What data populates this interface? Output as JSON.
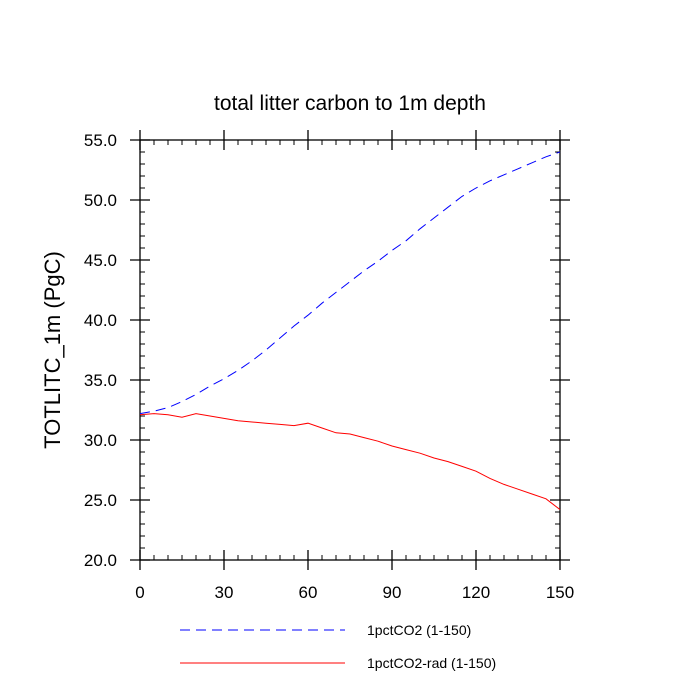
{
  "chart_data": {
    "type": "line",
    "title": "total litter carbon to 1m depth",
    "xlabel": "",
    "ylabel": "TOTLITC_1m  (PgC)",
    "xlim": [
      0,
      150
    ],
    "ylim": [
      20,
      55
    ],
    "x_ticks": [
      0,
      30,
      60,
      90,
      120,
      150
    ],
    "x_tick_labels": [
      "0",
      "30",
      "60",
      "90",
      "120",
      "150"
    ],
    "y_ticks": [
      20,
      25,
      30,
      35,
      40,
      45,
      50,
      55
    ],
    "y_tick_labels": [
      "20.0",
      "25.0",
      "30.0",
      "35.0",
      "40.0",
      "45.0",
      "50.0",
      "55.0"
    ],
    "grid": false,
    "legend_position": "bottom",
    "series": [
      {
        "name": "1pctCO2 (1-150)",
        "color": "#0000ff",
        "dash": "dashed",
        "x": [
          0,
          5,
          10,
          15,
          20,
          25,
          30,
          35,
          40,
          45,
          50,
          55,
          60,
          65,
          70,
          75,
          80,
          85,
          90,
          95,
          100,
          105,
          110,
          115,
          120,
          125,
          130,
          135,
          140,
          145,
          150
        ],
        "y": [
          32.2,
          32.4,
          32.7,
          33.2,
          33.8,
          34.5,
          35.1,
          35.8,
          36.6,
          37.5,
          38.5,
          39.5,
          40.4,
          41.4,
          42.3,
          43.2,
          44.1,
          44.9,
          45.8,
          46.6,
          47.6,
          48.5,
          49.4,
          50.3,
          51.0,
          51.6,
          52.1,
          52.6,
          53.1,
          53.6,
          54.0
        ]
      },
      {
        "name": "1pctCO2-rad (1-150)",
        "color": "#ff0000",
        "dash": "solid",
        "x": [
          0,
          5,
          10,
          15,
          20,
          25,
          30,
          35,
          40,
          45,
          50,
          55,
          60,
          65,
          70,
          75,
          80,
          85,
          90,
          95,
          100,
          105,
          110,
          115,
          120,
          125,
          130,
          135,
          140,
          145,
          150
        ],
        "y": [
          32.1,
          32.2,
          32.1,
          31.9,
          32.2,
          32.0,
          31.8,
          31.6,
          31.5,
          31.4,
          31.3,
          31.2,
          31.4,
          31.0,
          30.6,
          30.5,
          30.2,
          29.9,
          29.5,
          29.2,
          28.9,
          28.5,
          28.2,
          27.8,
          27.4,
          26.8,
          26.3,
          25.9,
          25.5,
          25.1,
          24.2
        ]
      }
    ]
  }
}
